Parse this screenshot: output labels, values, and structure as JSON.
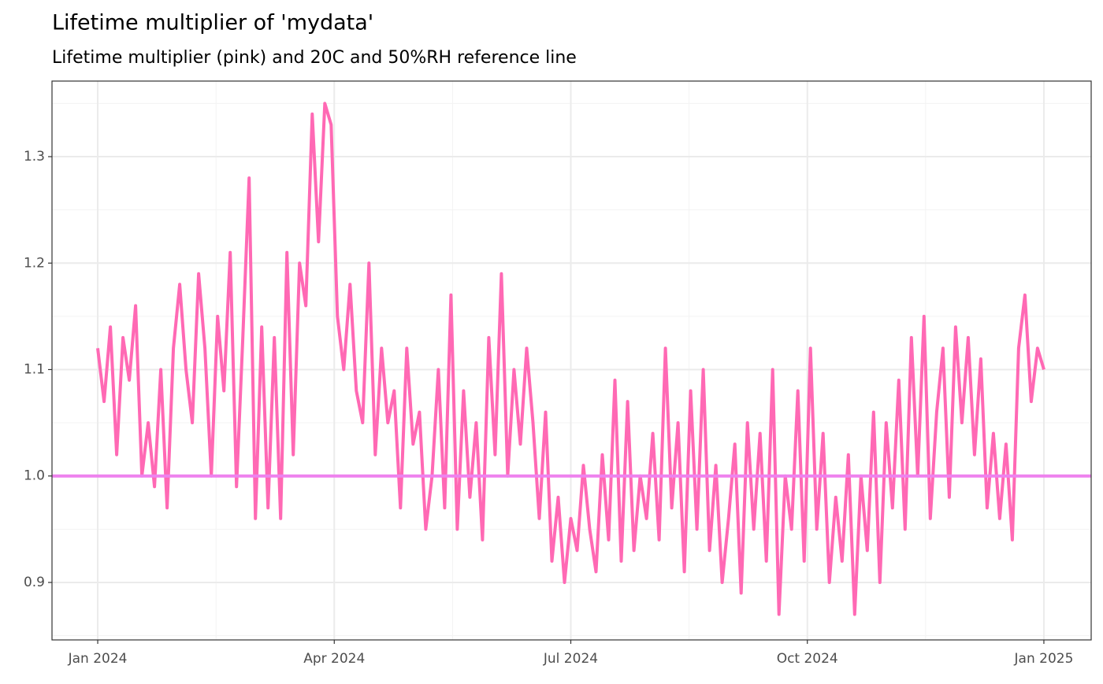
{
  "chart_data": {
    "type": "line",
    "title": "Lifetime multiplier of 'mydata'",
    "subtitle": "Lifetime multiplier (pink) and 20C and 50%RH reference line",
    "color": "#ff69b4",
    "x": [
      0,
      0.08,
      0.16,
      0.24,
      0.32,
      0.4,
      0.48,
      0.56,
      0.64,
      0.72,
      0.8,
      0.88,
      0.96,
      1.04,
      1.12,
      1.2,
      1.28,
      1.36,
      1.44,
      1.52,
      1.6,
      1.68,
      1.76,
      1.84,
      1.92,
      2,
      2.08,
      2.16,
      2.24,
      2.32,
      2.4,
      2.48,
      2.56,
      2.64,
      2.72,
      2.8,
      2.88,
      2.96,
      3.04,
      3.12,
      3.2,
      3.28,
      3.36,
      3.44,
      3.52,
      3.6,
      3.68,
      3.76,
      3.84,
      3.92,
      4,
      4.08,
      4.16,
      4.24,
      4.32,
      4.4,
      4.48,
      4.56,
      4.64,
      4.72,
      4.8,
      4.88,
      4.96,
      5.04,
      5.12,
      5.2,
      5.28,
      5.36,
      5.44,
      5.52,
      5.6,
      5.68,
      5.76,
      5.84,
      5.92,
      6,
      6.08,
      6.16,
      6.24,
      6.32,
      6.4,
      6.48,
      6.56,
      6.64,
      6.72,
      6.8,
      6.88,
      6.96,
      7.04,
      7.12,
      7.2,
      7.28,
      7.36,
      7.44,
      7.52,
      7.6,
      7.68,
      7.76,
      7.84,
      7.92,
      8,
      8.08,
      8.16,
      8.24,
      8.32,
      8.4,
      8.48,
      8.56,
      8.64,
      8.72,
      8.8,
      8.88,
      8.96,
      9.04,
      9.12,
      9.2,
      9.28,
      9.36,
      9.44,
      9.52,
      9.6,
      9.68,
      9.76,
      9.84,
      9.92,
      10,
      10.08,
      10.16,
      10.24,
      10.32,
      10.4,
      10.48,
      10.56,
      10.64,
      10.72,
      10.8,
      10.88,
      10.96,
      11.04,
      11.12,
      11.2,
      11.28,
      11.36,
      11.44,
      11.52,
      11.6,
      11.68,
      11.76,
      11.84,
      11.92,
      12
    ],
    "values": [
      1.12,
      1.07,
      1.14,
      1.02,
      1.13,
      1.09,
      1.16,
      1.0,
      1.05,
      0.99,
      1.1,
      0.97,
      1.12,
      1.18,
      1.1,
      1.05,
      1.19,
      1.12,
      1.0,
      1.15,
      1.08,
      1.21,
      0.99,
      1.13,
      1.28,
      0.96,
      1.14,
      0.97,
      1.13,
      0.96,
      1.21,
      1.02,
      1.2,
      1.16,
      1.34,
      1.22,
      1.35,
      1.33,
      1.15,
      1.1,
      1.18,
      1.08,
      1.05,
      1.2,
      1.02,
      1.12,
      1.05,
      1.08,
      0.97,
      1.12,
      1.03,
      1.06,
      0.95,
      1.0,
      1.1,
      0.97,
      1.17,
      0.95,
      1.08,
      0.98,
      1.05,
      0.94,
      1.13,
      1.02,
      1.19,
      1.0,
      1.1,
      1.03,
      1.12,
      1.05,
      0.96,
      1.06,
      0.92,
      0.98,
      0.9,
      0.96,
      0.93,
      1.01,
      0.95,
      0.91,
      1.02,
      0.94,
      1.09,
      0.92,
      1.07,
      0.93,
      1.0,
      0.96,
      1.04,
      0.94,
      1.12,
      0.97,
      1.05,
      0.91,
      1.08,
      0.95,
      1.1,
      0.93,
      1.01,
      0.9,
      0.96,
      1.03,
      0.89,
      1.05,
      0.95,
      1.04,
      0.92,
      1.1,
      0.87,
      1.0,
      0.95,
      1.08,
      0.92,
      1.12,
      0.95,
      1.04,
      0.9,
      0.98,
      0.92,
      1.02,
      0.87,
      1.0,
      0.93,
      1.06,
      0.9,
      1.05,
      0.97,
      1.09,
      0.95,
      1.13,
      1.0,
      1.15,
      0.96,
      1.06,
      1.12,
      0.98,
      1.14,
      1.05,
      1.13,
      1.02,
      1.11,
      0.97,
      1.04,
      0.96,
      1.03,
      0.94,
      1.12,
      1.17,
      1.07,
      1.12,
      1.1
    ],
    "reference_line": {
      "value": 1,
      "color": "#ee82ee"
    },
    "xlim": [
      -0.58,
      12.6
    ],
    "xticks": [
      {
        "value": 0,
        "label": "Jan 2024"
      },
      {
        "value": 3,
        "label": "Apr 2024"
      },
      {
        "value": 6,
        "label": "Jul 2024"
      },
      {
        "value": 9,
        "label": "Oct 2024"
      },
      {
        "value": 12,
        "label": "Jan 2025"
      }
    ],
    "xminor": [
      1.5,
      4.5,
      7.5,
      10.5
    ],
    "ylim": [
      0.846,
      1.371
    ],
    "yticks": [
      0.9,
      {
        "value": 1,
        "label": "1.0"
      },
      1.1,
      1.2,
      1.3
    ],
    "yminor": [
      0.85,
      0.95,
      1.05,
      1.15,
      1.25,
      1.35
    ],
    "grid": true
  }
}
